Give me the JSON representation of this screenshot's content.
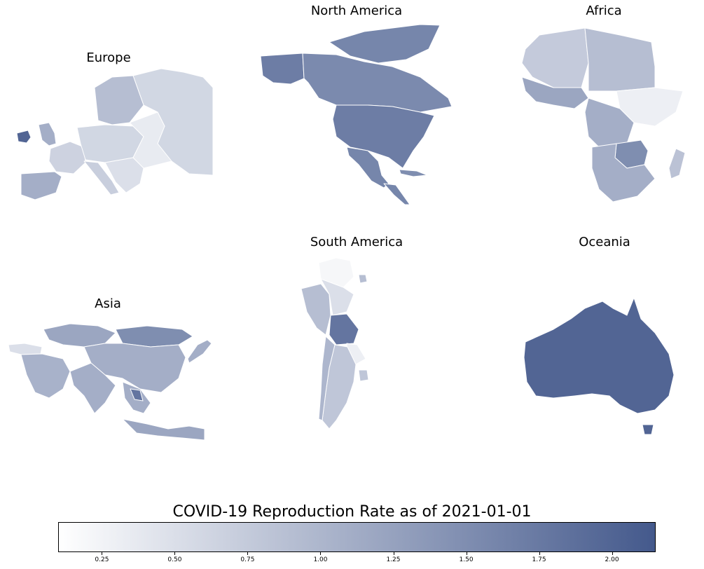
{
  "title": "COVID-19 Reproduction Rate as of 2021-01-01",
  "panels": {
    "europe": "Europe",
    "north_america": "North America",
    "africa": "Africa",
    "asia": "Asia",
    "south_america": "South America",
    "oceania": "Oceania"
  },
  "colorbar": {
    "min": 0.1,
    "max": 2.15,
    "low_color": "#ffffff",
    "high_color": "#44598c",
    "ticks": [
      {
        "value": 0.25,
        "label": "0.25"
      },
      {
        "value": 0.5,
        "label": "0.50"
      },
      {
        "value": 0.75,
        "label": "0.75"
      },
      {
        "value": 1.0,
        "label": "1.00"
      },
      {
        "value": 1.25,
        "label": "1.25"
      },
      {
        "value": 1.5,
        "label": "1.50"
      },
      {
        "value": 1.75,
        "label": "1.75"
      },
      {
        "value": 2.0,
        "label": "2.00"
      }
    ]
  },
  "regions": {
    "russia": 0.6,
    "scandinavia": 0.9,
    "uk": 1.1,
    "ireland": 2.0,
    "iberia": 1.1,
    "france": 0.65,
    "central_europe": 0.6,
    "eastern_europe": 0.35,
    "balkans": 0.5,
    "italy": 0.7,
    "canada": 1.55,
    "usa": 1.7,
    "mexico": 1.6,
    "greenland": 1.6,
    "alaska": 1.7,
    "cuba": 1.5,
    "north_africa_w": 0.75,
    "north_africa_e": 0.9,
    "west_africa": 1.2,
    "central_africa": 1.1,
    "east_africa": 0.3,
    "southern_africa": 1.1,
    "zambia": 1.5,
    "madagascar": 0.85,
    "south_africa": 1.1,
    "mongolia": 1.5,
    "kazakhstan": 1.2,
    "china": 1.1,
    "middle_east": 1.05,
    "india": 1.1,
    "se_asia": 1.1,
    "thailand": 1.8,
    "indonesia": 1.2,
    "turkey": 0.5,
    "colombia_venezuela": 0.2,
    "peru_ecuador": 0.9,
    "brazil_w": 0.5,
    "bolivia": 1.8,
    "chile": 1.0,
    "argentina": 0.8,
    "paraguay": 0.3,
    "uruguay": 0.8,
    "australia": 2.0,
    "tasmania": 2.0
  }
}
